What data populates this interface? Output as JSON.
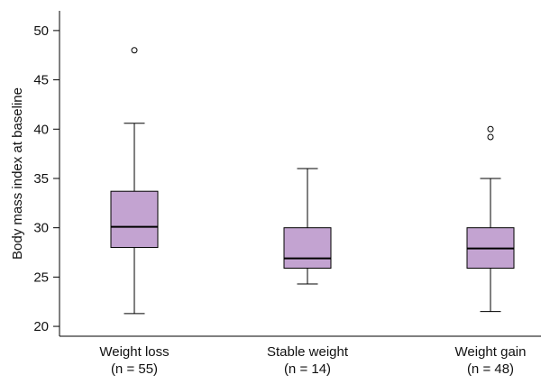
{
  "chart_data": {
    "type": "box",
    "ylabel": "Body mass index at baseline",
    "ylim": [
      19,
      52
    ],
    "yticks": [
      20,
      25,
      30,
      35,
      40,
      45,
      50
    ],
    "box_color": "#c3a3d1",
    "categories": [
      {
        "label": "Weight loss",
        "n_label": "(n = 55)",
        "min": 21.3,
        "q1": 28.0,
        "median": 30.1,
        "q3": 33.7,
        "max": 40.6,
        "outliers": [
          48.0
        ]
      },
      {
        "label": "Stable weight",
        "n_label": "(n = 14)",
        "min": 24.3,
        "q1": 25.9,
        "median": 26.9,
        "q3": 30.0,
        "max": 36.0,
        "outliers": []
      },
      {
        "label": "Weight gain",
        "n_label": "(n = 48)",
        "min": 21.5,
        "q1": 25.9,
        "median": 27.9,
        "q3": 30.0,
        "max": 35.0,
        "outliers": [
          39.2,
          40.0
        ]
      }
    ]
  }
}
